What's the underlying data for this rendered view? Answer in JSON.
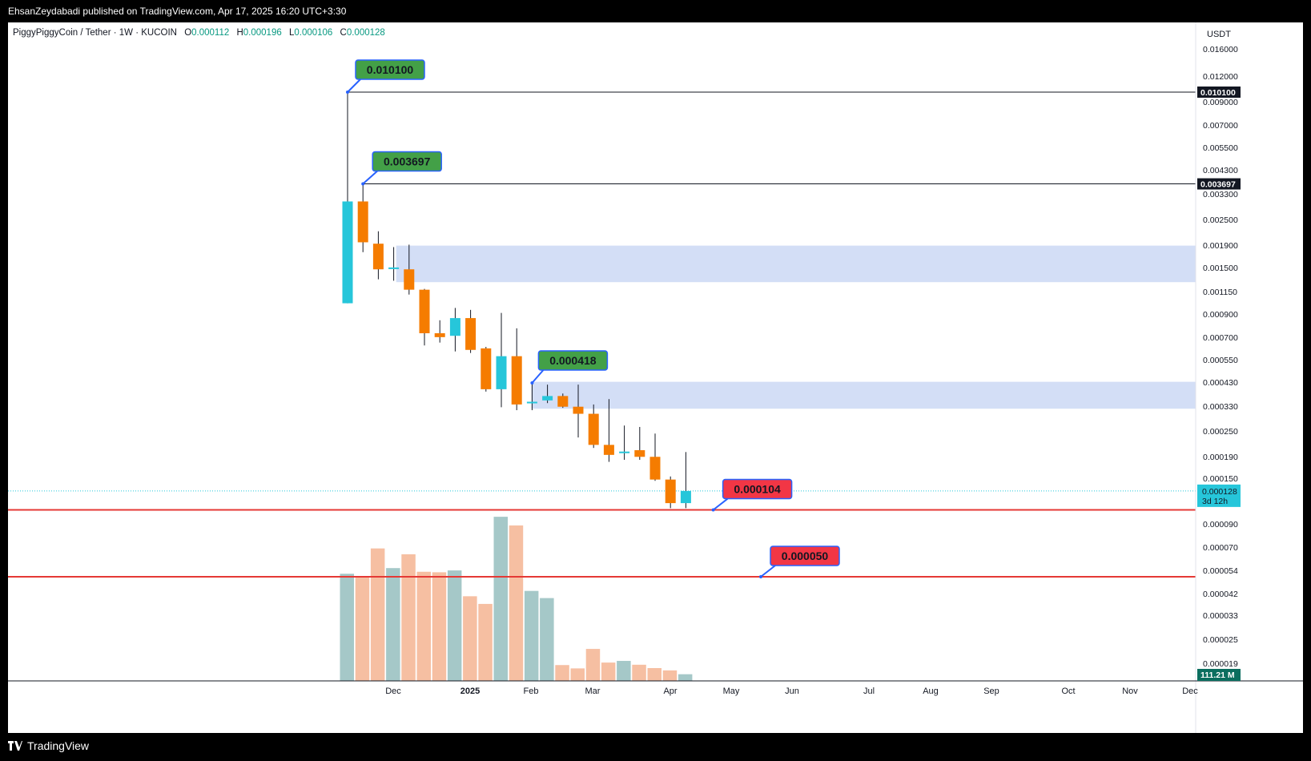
{
  "header": {
    "publisher_line": "EhsanZeydabadi published on TradingView.com, Apr 17, 2025 16:20 UTC+3:30"
  },
  "footer": {
    "brand": "TradingView"
  },
  "symbol": {
    "name": "PiggyPiggyCoin / Tether",
    "interval": "1W",
    "exchange": "KUCOIN",
    "o_label": "O",
    "o": "0.000112",
    "h_label": "H",
    "h": "0.000196",
    "l_label": "L",
    "l": "0.000106",
    "c_label": "C",
    "c": "0.000128"
  },
  "colors": {
    "up": "#26c6da",
    "down": "#f57c00",
    "vol_up": "#a5c8c8",
    "vol_down": "#f6bfa2",
    "zone": "#d3def6",
    "support": "#e53935",
    "label_green": "#43a047",
    "label_red": "#f23645",
    "label_border": "#2962ff",
    "current": "#26c6da"
  },
  "chart_data": {
    "type": "candlestick",
    "scale": "log",
    "currency": "USDT",
    "y_ticks": [
      "0.016000",
      "0.012000",
      "0.009000",
      "0.007000",
      "0.005500",
      "0.004300",
      "0.003300",
      "0.002500",
      "0.001900",
      "0.001500",
      "0.001150",
      "0.000900",
      "0.000700",
      "0.000550",
      "0.000430",
      "0.000330",
      "0.000250",
      "0.000190",
      "0.000150",
      "0.000090",
      "0.000070",
      "0.000054",
      "0.000042",
      "0.000033",
      "0.000025",
      "0.000019"
    ],
    "y_tick_values": [
      0.016,
      0.012,
      0.009,
      0.007,
      0.0055,
      0.0043,
      0.0033,
      0.0025,
      0.0019,
      0.0015,
      0.00115,
      0.0009,
      0.0007,
      0.00055,
      0.00043,
      0.00033,
      0.00025,
      0.00019,
      0.00015,
      9e-05,
      7e-05,
      5.4e-05,
      4.2e-05,
      3.3e-05,
      2.5e-05,
      1.9e-05
    ],
    "x_ticks": [
      {
        "label": "Dec",
        "bold": false
      },
      {
        "label": "2025",
        "bold": true
      },
      {
        "label": "Feb",
        "bold": false
      },
      {
        "label": "Mar",
        "bold": false
      },
      {
        "label": "Apr",
        "bold": false
      },
      {
        "label": "May",
        "bold": false
      },
      {
        "label": "Jun",
        "bold": false
      },
      {
        "label": "Jul",
        "bold": false
      },
      {
        "label": "Aug",
        "bold": false
      },
      {
        "label": "Sep",
        "bold": false
      },
      {
        "label": "Oct",
        "bold": false
      },
      {
        "label": "Nov",
        "bold": false
      },
      {
        "label": "Dec",
        "bold": false
      }
    ],
    "candles": [
      {
        "o": 0.001,
        "h": 0.0101,
        "l": 0.001,
        "c": 0.00305
      },
      {
        "o": 0.00305,
        "h": 0.003697,
        "l": 0.00175,
        "c": 0.00195
      },
      {
        "o": 0.00192,
        "h": 0.0022,
        "l": 0.0013,
        "c": 0.00145
      },
      {
        "o": 0.00146,
        "h": 0.00185,
        "l": 0.00128,
        "c": 0.00148
      },
      {
        "o": 0.00145,
        "h": 0.0019,
        "l": 0.0011,
        "c": 0.00116
      },
      {
        "o": 0.00116,
        "h": 0.00117,
        "l": 0.00063,
        "c": 0.00072
      },
      {
        "o": 0.00072,
        "h": 0.00083,
        "l": 0.00065,
        "c": 0.00069
      },
      {
        "o": 0.0007,
        "h": 0.00095,
        "l": 0.00059,
        "c": 0.00085
      },
      {
        "o": 0.00085,
        "h": 0.00093,
        "l": 0.00058,
        "c": 0.0006
      },
      {
        "o": 0.00061,
        "h": 0.00062,
        "l": 0.00038,
        "c": 0.00039
      },
      {
        "o": 0.00039,
        "h": 0.0009,
        "l": 0.00032,
        "c": 0.00056
      },
      {
        "o": 0.00056,
        "h": 0.00076,
        "l": 0.00031,
        "c": 0.00033
      },
      {
        "o": 0.000335,
        "h": 0.000418,
        "l": 0.00031,
        "c": 0.00034
      },
      {
        "o": 0.000345,
        "h": 0.00041,
        "l": 0.000335,
        "c": 0.000362
      },
      {
        "o": 0.000362,
        "h": 0.000372,
        "l": 0.000318,
        "c": 0.000322
      },
      {
        "o": 0.000322,
        "h": 0.00041,
        "l": 0.00023,
        "c": 0.000298
      },
      {
        "o": 0.000298,
        "h": 0.00033,
        "l": 0.000205,
        "c": 0.000212
      },
      {
        "o": 0.000212,
        "h": 0.00035,
        "l": 0.000176,
        "c": 0.00019
      },
      {
        "o": 0.000194,
        "h": 0.000262,
        "l": 0.00018,
        "c": 0.000197
      },
      {
        "o": 0.0002,
        "h": 0.000258,
        "l": 0.00018,
        "c": 0.000186
      },
      {
        "o": 0.000186,
        "h": 0.00024,
        "l": 0.000143,
        "c": 0.000145
      },
      {
        "o": 0.000145,
        "h": 0.00015,
        "l": 0.000106,
        "c": 0.000112
      },
      {
        "o": 0.000112,
        "h": 0.000196,
        "l": 0.000106,
        "c": 0.000128
      }
    ],
    "volume_pct": [
      0.643,
      0.62,
      0.795,
      0.677,
      0.76,
      0.655,
      0.652,
      0.663,
      0.508,
      0.462,
      0.985,
      0.933,
      0.54,
      0.497,
      0.095,
      0.075,
      0.192,
      0.11,
      0.12,
      0.097,
      0.077,
      0.063,
      0.04
    ],
    "volume_label": "111.21 M",
    "annotations": [
      {
        "price_label": "0.010100",
        "price": 0.0101,
        "color": "green",
        "bar": 0
      },
      {
        "price_label": "0.003697",
        "price": 0.003697,
        "color": "green",
        "bar": 1
      },
      {
        "price_label": "0.000418",
        "price": 0.000418,
        "color": "green",
        "bar": 12
      },
      {
        "price_label": "0.000104",
        "price": 0.000104,
        "color": "red",
        "bar": 23
      },
      {
        "price_label": "0.000050",
        "price": 5e-05,
        "color": "red",
        "bar": 27
      }
    ],
    "horizontal_lines": [
      {
        "price": 0.0101,
        "label": "0.010100",
        "style": "black"
      },
      {
        "price": 0.003697,
        "label": "0.003697",
        "style": "black"
      },
      {
        "price": 0.000104,
        "style": "red"
      },
      {
        "price": 5e-05,
        "style": "red"
      }
    ],
    "zones": [
      {
        "from": 0.00126,
        "to": 0.00188
      },
      {
        "from": 0.000315,
        "to": 0.000423
      }
    ],
    "current_price": {
      "price": 0.000128,
      "label": "0.000128",
      "countdown": "3d 12h"
    }
  }
}
